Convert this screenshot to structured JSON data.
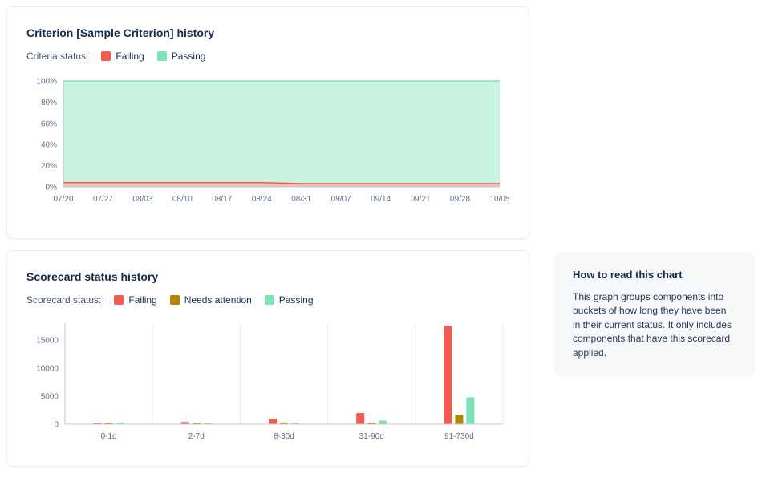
{
  "colors": {
    "failing": "#f15b50",
    "needs_attention": "#b38600",
    "passing": "#7ee2b8",
    "axis_line": "#c1c7d0",
    "grid_line": "#ebecf0"
  },
  "criterion_card": {
    "title": "Criterion [Sample Criterion] history",
    "legend_label": "Criteria status:",
    "legend": [
      {
        "label": "Failing",
        "color": "#f15b50"
      },
      {
        "label": "Passing",
        "color": "#7ee2b8"
      }
    ]
  },
  "scorecard_card": {
    "title": "Scorecard status history",
    "legend_label": "Scorecard status:",
    "legend": [
      {
        "label": "Failing",
        "color": "#f15b50"
      },
      {
        "label": "Needs attention",
        "color": "#b38600"
      },
      {
        "label": "Passing",
        "color": "#7ee2b8"
      }
    ]
  },
  "info_card": {
    "title": "How to read this chart",
    "body": "This graph groups components into buckets of how long they have been in their current status. It only includes components that have this scorecard applied."
  },
  "chart_data": [
    {
      "type": "area",
      "title": "Criterion [Sample Criterion] history",
      "stacked": true,
      "x": [
        "07/20",
        "07/27",
        "08/03",
        "08/10",
        "08/17",
        "08/24",
        "08/31",
        "09/07",
        "09/14",
        "09/21",
        "09/28",
        "10/05"
      ],
      "series": [
        {
          "name": "Failing",
          "color": "#f15b50",
          "values": [
            4,
            4,
            4,
            4,
            4,
            4,
            3,
            3,
            3,
            3,
            3,
            3
          ]
        },
        {
          "name": "Passing",
          "color": "#7ee2b8",
          "values": [
            96,
            96,
            96,
            96,
            96,
            96,
            97,
            97,
            97,
            97,
            97,
            97
          ]
        }
      ],
      "yticks": [
        {
          "v": 0,
          "label": "0%"
        },
        {
          "v": 20,
          "label": "20%"
        },
        {
          "v": 40,
          "label": "40%"
        },
        {
          "v": 60,
          "label": "60%"
        },
        {
          "v": 80,
          "label": "80%"
        },
        {
          "v": 100,
          "label": "100%"
        }
      ],
      "ylim": [
        0,
        100
      ],
      "legend_position": "top"
    },
    {
      "type": "bar",
      "title": "Scorecard status history",
      "categories": [
        "0-1d",
        "2-7d",
        "8-30d",
        "31-90d",
        "91-730d"
      ],
      "series": [
        {
          "name": "Failing",
          "color": "#f15b50",
          "values": [
            200,
            400,
            1000,
            2000,
            17500
          ]
        },
        {
          "name": "Needs attention",
          "color": "#b38600",
          "values": [
            150,
            130,
            300,
            260,
            1700
          ]
        },
        {
          "name": "Passing",
          "color": "#7ee2b8",
          "values": [
            120,
            150,
            250,
            650,
            4800
          ]
        }
      ],
      "yticks": [
        {
          "v": 0,
          "label": "0"
        },
        {
          "v": 5000,
          "label": "5000"
        },
        {
          "v": 10000,
          "label": "10000"
        },
        {
          "v": 15000,
          "label": "15000"
        }
      ],
      "ylim": [
        0,
        18000
      ],
      "grid": "vertical",
      "legend_position": "top"
    }
  ]
}
